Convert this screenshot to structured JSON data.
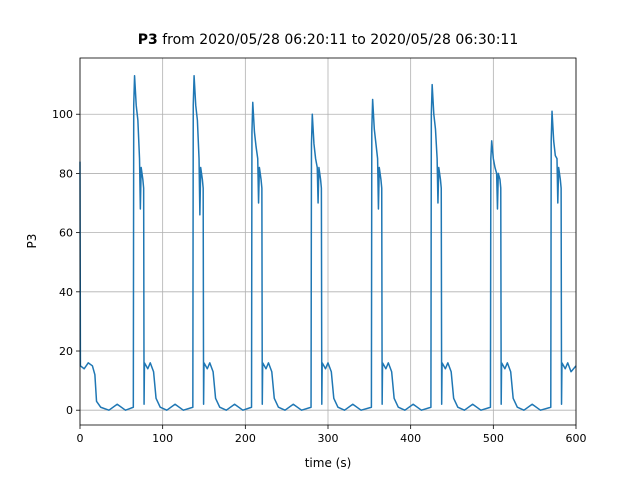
{
  "chart_data": {
    "type": "line",
    "title_bold": "P3",
    "title": "from 2020/05/28 06:20:11 to 2020/05/28 06:30:11",
    "xlabel": "time (s)",
    "ylabel": "P3",
    "color": "#1f77b4",
    "grid": true,
    "xlim": [
      0,
      600
    ],
    "xticks": [
      0,
      100,
      200,
      300,
      400,
      500,
      600
    ],
    "ylim": [
      -5,
      119
    ],
    "yticks": [
      0,
      20,
      40,
      60,
      80,
      100
    ],
    "x": [
      0,
      0.5,
      5,
      10,
      15,
      18,
      20,
      25,
      35,
      45,
      55,
      64.5,
      65,
      66,
      68,
      70,
      72,
      73,
      74,
      76,
      77,
      77.5,
      78,
      82,
      85,
      89,
      92,
      97,
      105,
      115,
      125,
      136.5,
      137,
      138,
      140,
      142,
      144,
      145,
      146,
      148,
      149,
      149.5,
      150,
      154,
      157,
      161,
      164,
      169,
      177,
      187,
      197,
      207.5,
      208,
      209,
      211,
      213,
      215,
      216,
      217,
      219,
      220,
      220.5,
      221,
      225,
      228,
      232,
      235,
      240,
      248,
      258,
      268,
      279.5,
      280,
      281,
      283,
      285,
      287,
      288,
      289,
      291,
      292,
      292.5,
      293,
      297,
      300,
      304,
      307,
      312,
      320,
      330,
      340,
      352.5,
      353,
      354,
      356,
      358,
      360,
      361,
      362,
      364,
      365,
      365.5,
      366,
      370,
      373,
      377,
      380,
      385,
      393,
      403,
      413,
      424.5,
      425,
      426,
      428,
      430,
      432,
      433,
      434,
      436,
      437,
      437.5,
      438,
      442,
      445,
      449,
      452,
      457,
      465,
      475,
      485,
      496.5,
      497,
      498,
      500,
      502,
      504,
      505,
      506,
      508,
      509,
      509.5,
      510,
      514,
      517,
      521,
      524,
      529,
      537,
      547,
      557,
      569.5,
      570,
      571,
      573,
      575,
      577,
      578,
      579,
      581,
      582,
      582.5,
      583,
      587,
      590,
      594,
      600
    ],
    "values": [
      84,
      15,
      14,
      16,
      15,
      12,
      3,
      1,
      0,
      2,
      0,
      1,
      103,
      113,
      103,
      98,
      85,
      68,
      82,
      78,
      75,
      2,
      16,
      14,
      16,
      13,
      4,
      1,
      0,
      2,
      0,
      1,
      103,
      113,
      103,
      98,
      85,
      66,
      82,
      78,
      75,
      2,
      16,
      14,
      16,
      13,
      4,
      1,
      0,
      2,
      0,
      1,
      94,
      104,
      94,
      89,
      85,
      70,
      82,
      78,
      75,
      2,
      16,
      14,
      16,
      13,
      4,
      1,
      0,
      2,
      0,
      1,
      90,
      100,
      90,
      85,
      82,
      70,
      82,
      78,
      75,
      2,
      16,
      14,
      16,
      13,
      4,
      1,
      0,
      2,
      0,
      1,
      95,
      105,
      95,
      90,
      85,
      68,
      82,
      78,
      75,
      2,
      16,
      14,
      16,
      13,
      4,
      1,
      0,
      2,
      0,
      1,
      100,
      110,
      100,
      95,
      85,
      70,
      82,
      78,
      75,
      2,
      16,
      14,
      16,
      13,
      4,
      1,
      0,
      2,
      0,
      1,
      85,
      91,
      85,
      82,
      80,
      68,
      80,
      78,
      75,
      2,
      16,
      14,
      16,
      13,
      4,
      1,
      0,
      2,
      0,
      1,
      91,
      101,
      91,
      86,
      85,
      70,
      82,
      78,
      75,
      2,
      16,
      14,
      16,
      13,
      15
    ]
  }
}
